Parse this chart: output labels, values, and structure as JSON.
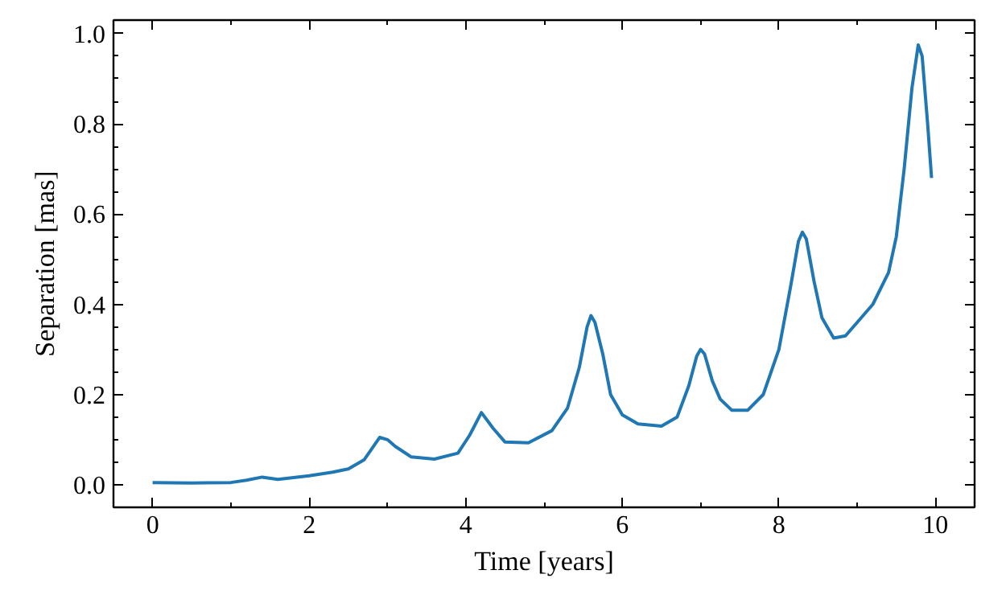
{
  "chart_data": {
    "type": "line",
    "xlabel": "Time [years]",
    "ylabel": "Separation [mas]",
    "x": [
      0,
      0.5,
      1.0,
      1.2,
      1.4,
      1.6,
      2.0,
      2.3,
      2.5,
      2.7,
      2.8,
      2.9,
      3.0,
      3.1,
      3.3,
      3.6,
      3.9,
      4.05,
      4.2,
      4.35,
      4.5,
      4.8,
      5.1,
      5.3,
      5.45,
      5.55,
      5.6,
      5.65,
      5.75,
      5.85,
      6.0,
      6.2,
      6.5,
      6.7,
      6.85,
      6.95,
      7.0,
      7.05,
      7.15,
      7.25,
      7.4,
      7.6,
      7.8,
      8.0,
      8.15,
      8.25,
      8.3,
      8.35,
      8.45,
      8.55,
      8.7,
      8.85,
      9.0,
      9.2,
      9.4,
      9.5,
      9.6,
      9.7,
      9.78,
      9.83,
      9.9,
      9.95
    ],
    "series": [
      {
        "color": "#1f77b4",
        "values": [
          0.005,
          0.004,
          0.005,
          0.01,
          0.017,
          0.012,
          0.02,
          0.028,
          0.035,
          0.055,
          0.08,
          0.105,
          0.1,
          0.085,
          0.062,
          0.057,
          0.07,
          0.11,
          0.16,
          0.125,
          0.095,
          0.093,
          0.12,
          0.17,
          0.26,
          0.35,
          0.375,
          0.36,
          0.29,
          0.2,
          0.155,
          0.135,
          0.13,
          0.15,
          0.22,
          0.285,
          0.3,
          0.29,
          0.23,
          0.19,
          0.165,
          0.165,
          0.2,
          0.3,
          0.44,
          0.54,
          0.56,
          0.545,
          0.45,
          0.37,
          0.325,
          0.33,
          0.36,
          0.4,
          0.47,
          0.55,
          0.7,
          0.88,
          0.975,
          0.95,
          0.8,
          0.68
        ]
      }
    ],
    "xlim": [
      -0.5,
      10.5
    ],
    "ylim": [
      -0.05,
      1.03
    ],
    "xticks": [
      0,
      2,
      4,
      6,
      8,
      10
    ],
    "yticks": [
      {
        "value": 0,
        "label": "0.0"
      },
      {
        "value": 0.2,
        "label": "0.2"
      },
      {
        "value": 0.4,
        "label": "0.4"
      },
      {
        "value": 0.6,
        "label": "0.6"
      },
      {
        "value": 0.8,
        "label": "0.8"
      },
      {
        "value": 1.0,
        "label": "1.0"
      }
    ],
    "grid": false,
    "marker": "none",
    "line_style": "solid"
  }
}
